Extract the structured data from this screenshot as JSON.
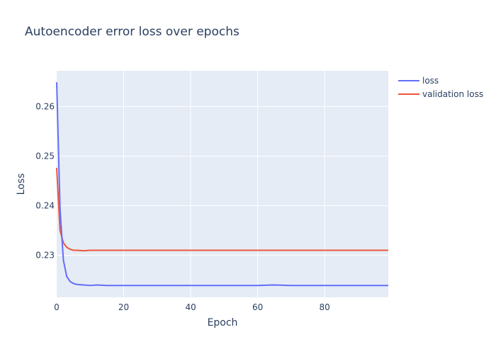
{
  "chart_data": {
    "type": "line",
    "title": "Autoencoder error loss over epochs",
    "xlabel": "Epoch",
    "ylabel": "Loss",
    "xlim": [
      0,
      99
    ],
    "ylim": [
      0.2215,
      0.2672
    ],
    "x_ticks": [
      0,
      20,
      40,
      60,
      80
    ],
    "y_ticks": [
      0.23,
      0.24,
      0.25,
      0.26
    ],
    "x_tick_labels": [
      "0",
      "20",
      "40",
      "60",
      "80"
    ],
    "y_tick_labels": [
      "0.23",
      "0.24",
      "0.25",
      "0.26"
    ],
    "legend_position": "top-right",
    "series": [
      {
        "name": "loss",
        "color": "#636efa",
        "x": [
          0,
          1,
          2,
          3,
          4,
          5,
          6,
          8,
          10,
          12,
          15,
          20,
          30,
          40,
          50,
          55,
          60,
          65,
          70,
          75,
          80,
          85,
          90,
          95,
          99
        ],
        "y": [
          0.2649,
          0.2394,
          0.229,
          0.2257,
          0.2247,
          0.2243,
          0.2241,
          0.224,
          0.2239,
          0.224,
          0.2239,
          0.2239,
          0.2239,
          0.2239,
          0.2239,
          0.2239,
          0.2239,
          0.224,
          0.2239,
          0.2239,
          0.2239,
          0.2239,
          0.2239,
          0.2239,
          0.2239
        ]
      },
      {
        "name": "validation loss",
        "color": "#ef553b",
        "x": [
          0,
          1,
          2,
          3,
          4,
          5,
          6,
          8,
          10,
          12,
          15,
          20,
          30,
          40,
          50,
          60,
          70,
          74,
          80,
          85,
          88,
          90,
          95,
          99
        ],
        "y": [
          0.2476,
          0.235,
          0.2325,
          0.2316,
          0.2312,
          0.231,
          0.231,
          0.2309,
          0.231,
          0.231,
          0.231,
          0.231,
          0.231,
          0.231,
          0.231,
          0.231,
          0.231,
          0.231,
          0.231,
          0.231,
          0.231,
          0.231,
          0.231,
          0.231
        ]
      }
    ]
  }
}
